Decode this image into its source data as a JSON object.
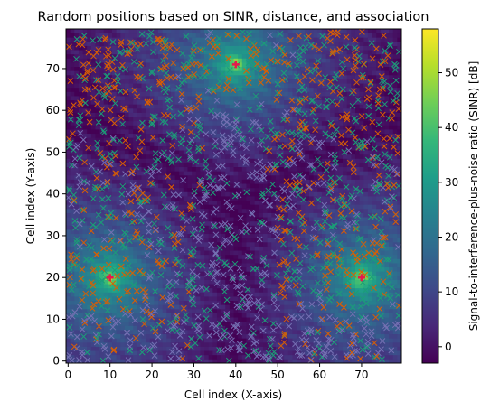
{
  "chart_data": {
    "type": "heatmap",
    "title": "Random positions based on SINR, distance, and association",
    "xlabel": "Cell index (X-axis)",
    "ylabel": "Cell index (Y-axis)",
    "colorbar_label": "Signal-to-interference-plus-noise ratio (SINR) [dB]",
    "grid_size": [
      80,
      80
    ],
    "xlim": [
      -0.5,
      79.5
    ],
    "ylim": [
      -0.5,
      79.5
    ],
    "x_ticks": [
      0,
      10,
      20,
      30,
      40,
      50,
      60,
      70
    ],
    "y_ticks": [
      0,
      10,
      20,
      30,
      40,
      50,
      60,
      70
    ],
    "colorbar_range": [
      -3,
      58
    ],
    "colorbar_ticks": [
      0,
      10,
      20,
      30,
      40,
      50
    ],
    "colormap": "viridis",
    "colormap_stops": [
      "#440154",
      "#482878",
      "#3e4989",
      "#31688e",
      "#26828e",
      "#1f9e89",
      "#35b779",
      "#6ece58",
      "#b5de2b",
      "#fde725"
    ],
    "base_stations": [
      {
        "x": 10,
        "y": 20
      },
      {
        "x": 40,
        "y": 71
      },
      {
        "x": 70,
        "y": 20
      }
    ],
    "base_station_color": "#e6194b",
    "series": [
      {
        "color": "#d95f02",
        "marker": "x",
        "description": "positions associated with orange cluster"
      },
      {
        "color": "#1b9e77",
        "marker": "x",
        "description": "positions associated with teal cluster"
      },
      {
        "color": "#7570b3",
        "marker": "x",
        "description": "positions associated with purple cluster"
      }
    ]
  }
}
